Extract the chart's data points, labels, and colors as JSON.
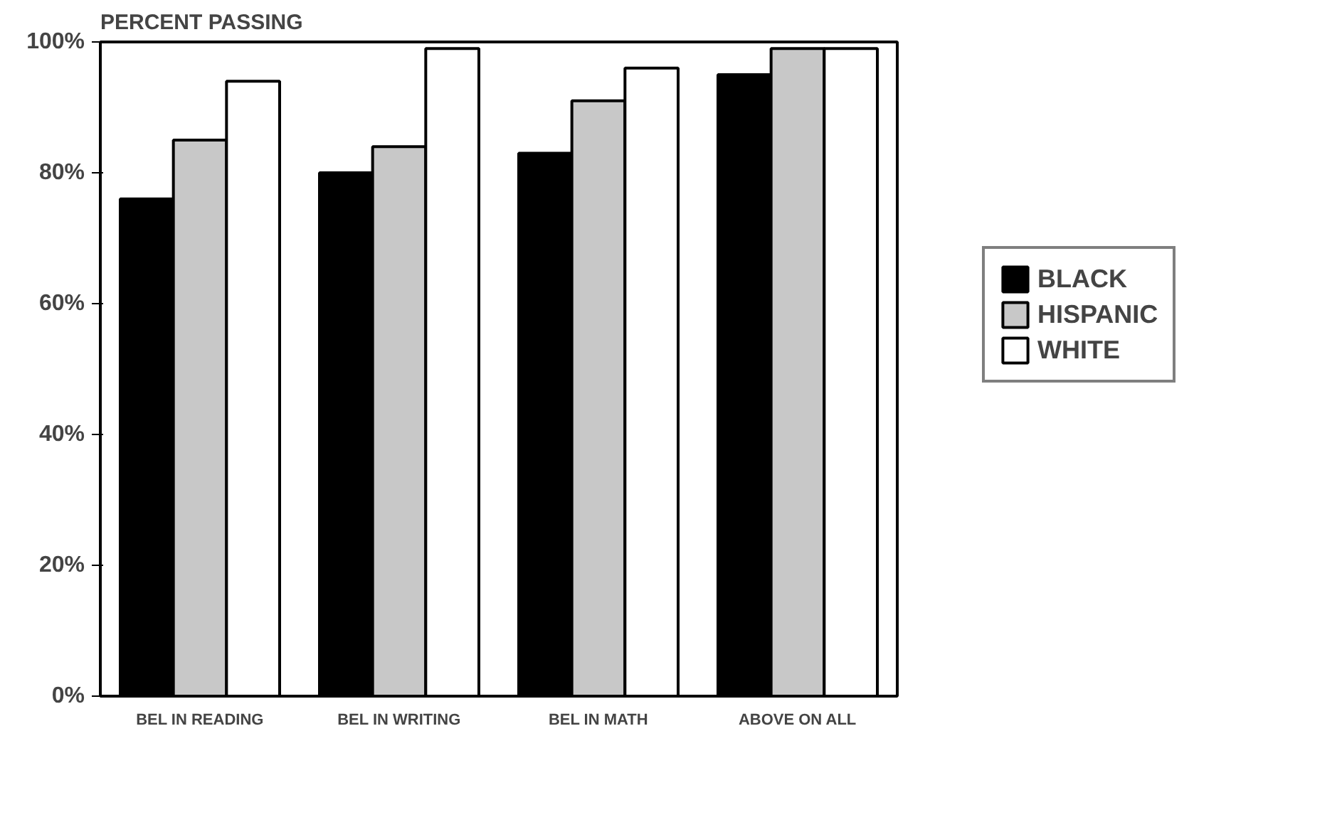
{
  "chart_data": {
    "type": "bar",
    "ylabel": "PERCENT PASSING",
    "categories": [
      "BEL IN READING",
      "BEL IN WRITING",
      "BEL IN MATH",
      "ABOVE ON ALL"
    ],
    "series": [
      {
        "name": "BLACK",
        "color": "#000000",
        "values": [
          76,
          80,
          83,
          95
        ]
      },
      {
        "name": "HISPANIC",
        "color": "#c8c8c8",
        "values": [
          85,
          84,
          91,
          99
        ]
      },
      {
        "name": "WHITE",
        "color": "#ffffff",
        "values": [
          94,
          99,
          96,
          99
        ]
      }
    ],
    "ylim": [
      0,
      100
    ],
    "yticks": [
      {
        "value": 0,
        "label": "0%"
      },
      {
        "value": 20,
        "label": "20%"
      },
      {
        "value": 40,
        "label": "40%"
      },
      {
        "value": 60,
        "label": "60%"
      },
      {
        "value": 80,
        "label": "80%"
      },
      {
        "value": 100,
        "label": "100%"
      }
    ],
    "grid": false,
    "legend": "right"
  }
}
